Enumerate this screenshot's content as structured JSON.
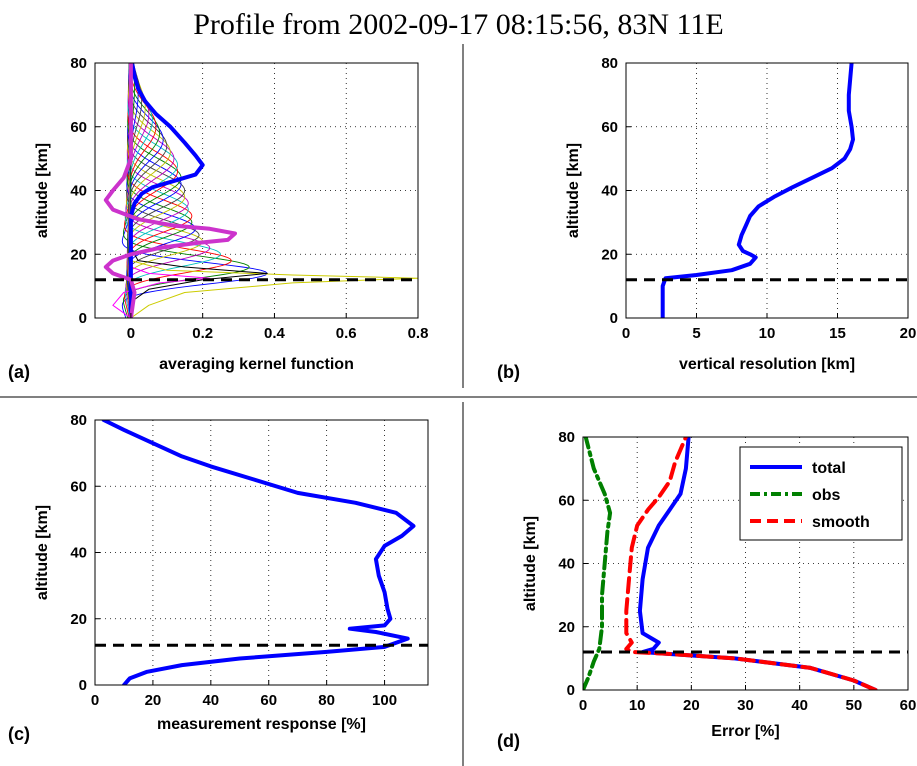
{
  "figure": {
    "title": "Profile from 2002-09-17 08:15:56, 83N 11E"
  },
  "chart_data": [
    {
      "id": "a",
      "panel_tag": "(a)",
      "type": "line",
      "xlabel": "averaging kernel function",
      "ylabel": "altitude [km]",
      "xlim": [
        -0.1,
        0.8
      ],
      "ylim": [
        0,
        80
      ],
      "xticks": [
        0,
        0.2,
        0.4,
        0.6,
        0.8
      ],
      "xtick_labels": [
        "0",
        "0.2",
        "0.4",
        "0.6",
        "0.8"
      ],
      "yticks": [
        0,
        20,
        40,
        60,
        80
      ],
      "grid": true,
      "reference_line": {
        "y": 12,
        "style": "dashed",
        "color": "#000000"
      },
      "highlight_series": [
        {
          "color": "#0000ff",
          "points": [
            [
              0,
              80
            ],
            [
              0.01,
              76
            ],
            [
              0.02,
              72
            ],
            [
              0.04,
              68
            ],
            [
              0.07,
              64
            ],
            [
              0.11,
              60
            ],
            [
              0.15,
              55
            ],
            [
              0.18,
              51
            ],
            [
              0.2,
              48
            ],
            [
              0.18,
              45
            ],
            [
              0.12,
              43
            ],
            [
              0.06,
              41
            ],
            [
              0.03,
              39
            ],
            [
              0.01,
              36
            ],
            [
              0,
              32
            ],
            [
              0,
              20
            ],
            [
              0,
              0
            ]
          ]
        },
        {
          "color": "#cc33cc",
          "points": [
            [
              0,
              80
            ],
            [
              0,
              60
            ],
            [
              0,
              50
            ],
            [
              -0.02,
              44
            ],
            [
              -0.05,
              40
            ],
            [
              -0.07,
              37
            ],
            [
              -0.05,
              34
            ],
            [
              0.02,
              31
            ],
            [
              0.12,
              29
            ],
            [
              0.22,
              28
            ],
            [
              0.29,
              26.5
            ],
            [
              0.27,
              24.5
            ],
            [
              0.18,
              23.5
            ],
            [
              0.08,
              22
            ],
            [
              0,
              20
            ],
            [
              -0.05,
              18
            ],
            [
              -0.07,
              16
            ],
            [
              -0.05,
              14
            ],
            [
              0,
              12
            ],
            [
              0.01,
              8
            ],
            [
              0,
              0
            ]
          ]
        }
      ],
      "kernel_peaks_km": [
        14,
        16,
        18,
        20,
        22,
        24,
        26,
        28,
        30,
        32,
        34,
        36,
        38,
        40,
        42,
        44,
        46,
        48,
        50,
        52,
        54,
        56,
        58,
        60,
        62,
        64,
        66,
        68,
        70,
        72
      ],
      "kernel_peak_values": [
        0.38,
        0.33,
        0.28,
        0.25,
        0.22,
        0.2,
        0.19,
        0.18,
        0.17,
        0.17,
        0.16,
        0.16,
        0.15,
        0.15,
        0.14,
        0.14,
        0.13,
        0.13,
        0.12,
        0.11,
        0.1,
        0.09,
        0.08,
        0.07,
        0.06,
        0.05,
        0.04,
        0.03,
        0.02,
        0.01
      ],
      "low_kernel_series": [
        {
          "color": "#cccc00",
          "points": [
            [
              0,
              0
            ],
            [
              0.05,
              4
            ],
            [
              0.15,
              8
            ],
            [
              0.45,
              11
            ],
            [
              0.8,
              12.5
            ],
            [
              0.45,
              13.5
            ],
            [
              0.1,
              15
            ],
            [
              0,
              18
            ]
          ]
        },
        {
          "color": "#000000",
          "points": [
            [
              0,
              0
            ],
            [
              0,
              5
            ],
            [
              0.05,
              9
            ],
            [
              0.2,
              12
            ],
            [
              0.38,
              14
            ],
            [
              0.15,
              16
            ],
            [
              0.02,
              18
            ],
            [
              0,
              22
            ]
          ]
        },
        {
          "color": "#ff00ff",
          "points": [
            [
              0,
              0
            ],
            [
              -0.05,
              4
            ],
            [
              -0.02,
              8
            ],
            [
              0.08,
              11
            ],
            [
              0.22,
              12.5
            ],
            [
              0.05,
              14
            ],
            [
              0,
              16
            ]
          ]
        }
      ],
      "kernel_colors": [
        "#0000ff",
        "#008000",
        "#ff0000",
        "#00bfbf",
        "#bf00bf",
        "#bfbf00",
        "#404040",
        "#0000ff",
        "#008000",
        "#ff0000",
        "#00bfbf",
        "#bf00bf",
        "#bfbf00",
        "#404040",
        "#0000ff",
        "#008000",
        "#ff0000",
        "#00bfbf",
        "#bf00bf",
        "#bfbf00",
        "#404040",
        "#0000ff",
        "#008000",
        "#ff0000",
        "#00bfbf",
        "#bf00bf",
        "#bfbf00",
        "#404040",
        "#0000ff",
        "#008000"
      ]
    },
    {
      "id": "b",
      "panel_tag": "(b)",
      "type": "line",
      "xlabel": "vertical resolution [km]",
      "ylabel": "altitude [km]",
      "xlim": [
        0,
        20
      ],
      "ylim": [
        0,
        80
      ],
      "xticks": [
        0,
        5,
        10,
        15,
        20
      ],
      "yticks": [
        0,
        20,
        40,
        60,
        80
      ],
      "grid": true,
      "reference_line": {
        "y": 12,
        "style": "dashed",
        "color": "#000000"
      },
      "series": [
        {
          "color": "#0000ff",
          "style": "solid",
          "points": [
            [
              2.6,
              0
            ],
            [
              2.6,
              5
            ],
            [
              2.6,
              10
            ],
            [
              2.8,
              12.5
            ],
            [
              5,
              13.5
            ],
            [
              7.5,
              15
            ],
            [
              8.8,
              17
            ],
            [
              9.2,
              19
            ],
            [
              8.8,
              20
            ],
            [
              8.3,
              21
            ],
            [
              8,
              23
            ],
            [
              8.2,
              26
            ],
            [
              8.5,
              29
            ],
            [
              8.8,
              32
            ],
            [
              9.4,
              35
            ],
            [
              10.5,
              38
            ],
            [
              11.8,
              41
            ],
            [
              13.2,
              44
            ],
            [
              14.6,
              47
            ],
            [
              15.5,
              50
            ],
            [
              15.9,
              53
            ],
            [
              16.1,
              56
            ],
            [
              16.0,
              60
            ],
            [
              15.8,
              65
            ],
            [
              15.8,
              70
            ],
            [
              15.9,
              75
            ],
            [
              16.0,
              80
            ]
          ]
        }
      ]
    },
    {
      "id": "c",
      "panel_tag": "(c)",
      "type": "line",
      "xlabel": "measurement response [%]",
      "ylabel": "altitude [km]",
      "xlim": [
        0,
        115
      ],
      "ylim": [
        0,
        80
      ],
      "xticks": [
        0,
        20,
        40,
        60,
        80,
        100
      ],
      "yticks": [
        0,
        20,
        40,
        60,
        80
      ],
      "grid": true,
      "reference_line": {
        "y": 12,
        "style": "dashed",
        "color": "#000000"
      },
      "series": [
        {
          "color": "#0000ff",
          "style": "solid",
          "points": [
            [
              10,
              0
            ],
            [
              12,
              2
            ],
            [
              18,
              4
            ],
            [
              30,
              6
            ],
            [
              50,
              8
            ],
            [
              80,
              10
            ],
            [
              100,
              11.5
            ],
            [
              108,
              14
            ],
            [
              97,
              16
            ],
            [
              88,
              17
            ],
            [
              100,
              18
            ],
            [
              102,
              20
            ],
            [
              101,
              23
            ],
            [
              100,
              28
            ],
            [
              98,
              33
            ],
            [
              97,
              38
            ],
            [
              100,
              42
            ],
            [
              106,
              45
            ],
            [
              110,
              48
            ],
            [
              104,
              52
            ],
            [
              90,
              55
            ],
            [
              70,
              58
            ],
            [
              55,
              62
            ],
            [
              40,
              66
            ],
            [
              30,
              69
            ],
            [
              20,
              73
            ],
            [
              10,
              77
            ],
            [
              3,
              80
            ]
          ]
        }
      ]
    },
    {
      "id": "d",
      "panel_tag": "(d)",
      "type": "line",
      "xlabel": "Error [%]",
      "ylabel": "altitude [km]",
      "xlim": [
        0,
        60
      ],
      "ylim": [
        0,
        80
      ],
      "xticks": [
        0,
        10,
        20,
        30,
        40,
        50,
        60
      ],
      "yticks": [
        0,
        20,
        40,
        60,
        80
      ],
      "grid": true,
      "legend": "top-right",
      "reference_line": {
        "y": 12,
        "style": "dashed",
        "color": "#000000"
      },
      "series": [
        {
          "name": "total",
          "color": "#0000ff",
          "style": "solid",
          "points": [
            [
              54,
              0
            ],
            [
              50,
              3
            ],
            [
              42,
              7
            ],
            [
              28,
              10
            ],
            [
              15,
              11.5
            ],
            [
              11,
              12
            ],
            [
              13,
              13
            ],
            [
              14,
              15
            ],
            [
              11,
              18
            ],
            [
              10.5,
              25
            ],
            [
              11,
              35
            ],
            [
              12,
              45
            ],
            [
              14,
              52
            ],
            [
              16,
              57
            ],
            [
              18,
              62
            ],
            [
              19,
              70
            ],
            [
              19.5,
              80
            ]
          ]
        },
        {
          "name": "obs",
          "color": "#008000",
          "style": "dashdot",
          "points": [
            [
              0,
              0
            ],
            [
              1,
              4
            ],
            [
              2,
              9
            ],
            [
              3,
              13
            ],
            [
              3.5,
              20
            ],
            [
              3.5,
              30
            ],
            [
              4,
              40
            ],
            [
              4.5,
              50
            ],
            [
              5,
              56
            ],
            [
              4,
              62
            ],
            [
              2,
              70
            ],
            [
              0.5,
              80
            ]
          ]
        },
        {
          "name": "smooth",
          "color": "#ff0000",
          "style": "dashed",
          "points": [
            [
              54,
              0
            ],
            [
              50,
              3
            ],
            [
              42,
              7
            ],
            [
              28,
              10
            ],
            [
              15,
              11.5
            ],
            [
              9,
              12
            ],
            [
              8,
              13
            ],
            [
              9,
              15
            ],
            [
              8,
              18
            ],
            [
              8,
              25
            ],
            [
              8.5,
              35
            ],
            [
              9,
              45
            ],
            [
              10,
              52
            ],
            [
              12,
              57
            ],
            [
              14,
              61
            ],
            [
              16,
              66
            ],
            [
              17,
              72
            ],
            [
              18,
              76
            ],
            [
              19,
              80
            ]
          ]
        }
      ]
    }
  ]
}
